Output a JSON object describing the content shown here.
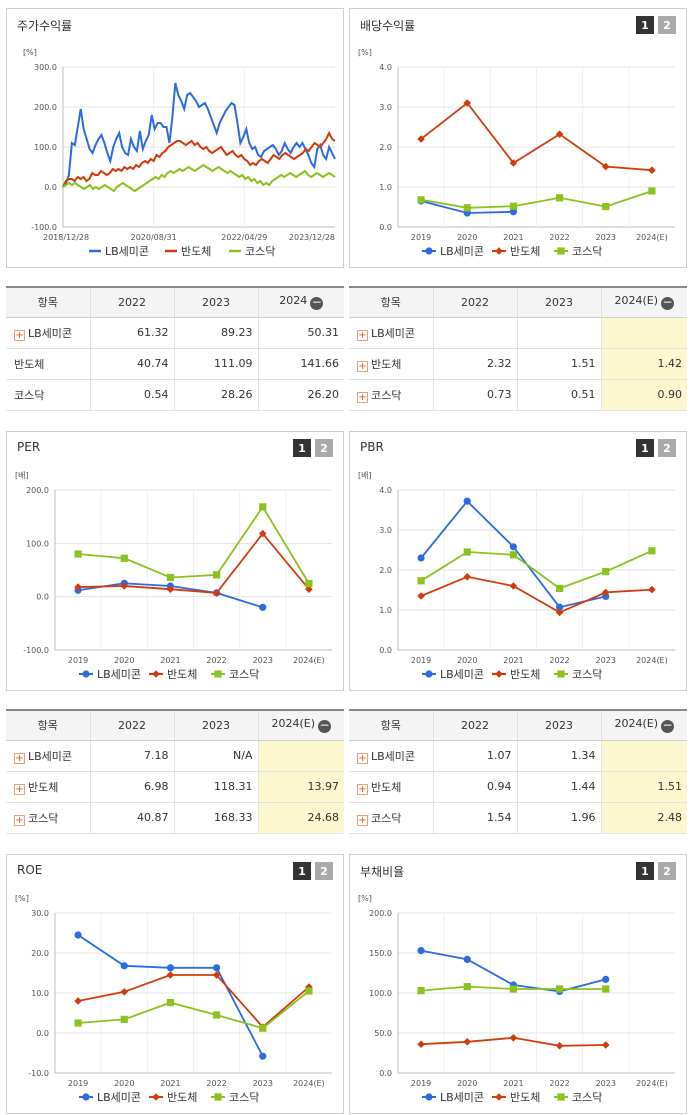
{
  "legend_names": [
    "LB세미콘",
    "반도체",
    "코스닥"
  ],
  "colors": {
    "lb": "#2d6be0",
    "semi": "#d23c0c",
    "kosdaq": "#8cc21e"
  },
  "pager": [
    "1",
    "2"
  ],
  "charts": {
    "stock": {
      "title": "주가수익률",
      "unit": "[%]",
      "chart_data": {
        "type": "line",
        "ylim": [
          -100,
          300
        ],
        "yticks": [
          "300.0",
          "200.0",
          "100.0",
          "0.0",
          "-100.0"
        ],
        "xticks": [
          "2018/12/28",
          "2020/08/31",
          "2022/04/29",
          "2023/12/28"
        ],
        "series": [
          {
            "name": "LB세미콘",
            "values": [
              0,
              10,
              30,
              110,
              105,
              150,
              195,
              145,
              120,
              95,
              85,
              105,
              120,
              130,
              110,
              85,
              65,
              100,
              120,
              135,
              100,
              85,
              80,
              120,
              100,
              90,
              140,
              95,
              115,
              130,
              180,
              145,
              160,
              160,
              150,
              150,
              110,
              175,
              260,
              230,
              215,
              195,
              230,
              235,
              225,
              215,
              200,
              205,
              210,
              195,
              175,
              155,
              135,
              160,
              175,
              190,
              200,
              210,
              205,
              160,
              110,
              125,
              145,
              110,
              95,
              100,
              80,
              75,
              90,
              95,
              100,
              105,
              95,
              80,
              90,
              110,
              95,
              85,
              100,
              110,
              100,
              110,
              95,
              80,
              60,
              50,
              95,
              105,
              80,
              70,
              100,
              85,
              70
            ]
          },
          {
            "name": "반도체",
            "values": [
              0,
              15,
              20,
              20,
              15,
              25,
              20,
              25,
              15,
              20,
              35,
              30,
              30,
              40,
              35,
              30,
              35,
              45,
              40,
              45,
              40,
              50,
              45,
              50,
              45,
              55,
              50,
              60,
              65,
              60,
              70,
              65,
              80,
              75,
              85,
              90,
              100,
              105,
              110,
              115,
              115,
              110,
              105,
              110,
              115,
              105,
              110,
              100,
              95,
              100,
              90,
              85,
              90,
              95,
              100,
              90,
              80,
              85,
              90,
              80,
              75,
              80,
              70,
              65,
              55,
              60,
              55,
              65,
              70,
              65,
              60,
              70,
              80,
              75,
              70,
              80,
              85,
              80,
              75,
              70,
              75,
              80,
              85,
              95,
              90,
              100,
              110,
              105,
              100,
              110,
              120,
              135,
              120,
              115
            ]
          },
          {
            "name": "코스닥",
            "values": [
              0,
              5,
              10,
              5,
              10,
              5,
              0,
              -5,
              0,
              5,
              -5,
              0,
              -5,
              0,
              5,
              0,
              -5,
              -10,
              0,
              5,
              10,
              5,
              0,
              -5,
              -10,
              -5,
              0,
              5,
              10,
              15,
              20,
              25,
              20,
              30,
              25,
              35,
              40,
              35,
              40,
              45,
              40,
              45,
              50,
              45,
              40,
              45,
              50,
              55,
              50,
              45,
              40,
              45,
              50,
              45,
              40,
              35,
              40,
              35,
              30,
              25,
              30,
              20,
              25,
              15,
              20,
              10,
              15,
              5,
              10,
              5,
              15,
              20,
              25,
              30,
              25,
              30,
              35,
              30,
              25,
              30,
              35,
              40,
              30,
              25,
              30,
              35,
              30,
              25,
              30,
              35,
              30,
              25
            ]
          }
        ]
      }
    },
    "dividend": {
      "title": "배당수익률",
      "unit": "[%]",
      "chart_data": {
        "type": "line",
        "ylim": [
          0,
          4
        ],
        "yticks": [
          "4.0",
          "3.0",
          "2.0",
          "1.0",
          "0.0"
        ],
        "categories": [
          "2019",
          "2020",
          "2021",
          "2022",
          "2023",
          "2024(E)"
        ],
        "series": [
          {
            "name": "LB세미콘",
            "values": [
              0.65,
              0.35,
              0.38,
              null,
              null,
              null
            ]
          },
          {
            "name": "반도체",
            "values": [
              2.2,
              3.1,
              1.6,
              2.32,
              1.51,
              1.42
            ]
          },
          {
            "name": "코스닥",
            "values": [
              0.68,
              0.48,
              0.52,
              0.73,
              0.51,
              0.9
            ]
          }
        ]
      }
    },
    "per": {
      "title": "PER",
      "unit": "[배]",
      "chart_data": {
        "type": "line",
        "ylim": [
          -100,
          200
        ],
        "yticks": [
          "200.0",
          "100.0",
          "0.0",
          "-100.0"
        ],
        "categories": [
          "2019",
          "2020",
          "2021",
          "2022",
          "2023",
          "2024(E)"
        ],
        "series": [
          {
            "name": "LB세미콘",
            "values": [
              12,
              25,
              20,
              7.18,
              -20,
              null
            ]
          },
          {
            "name": "반도체",
            "values": [
              18,
              20,
              14,
              6.98,
              118.31,
              13.97
            ]
          },
          {
            "name": "코스닥",
            "values": [
              80,
              72,
              36,
              40.87,
              168.33,
              24.68
            ]
          }
        ]
      }
    },
    "pbr": {
      "title": "PBR",
      "unit": "[배]",
      "chart_data": {
        "type": "line",
        "ylim": [
          0,
          4
        ],
        "yticks": [
          "4.0",
          "3.0",
          "2.0",
          "1.0",
          "0.0"
        ],
        "categories": [
          "2019",
          "2020",
          "2021",
          "2022",
          "2023",
          "2024(E)"
        ],
        "series": [
          {
            "name": "LB세미콘",
            "values": [
              2.3,
              3.72,
              2.58,
              1.07,
              1.34,
              null
            ]
          },
          {
            "name": "반도체",
            "values": [
              1.35,
              1.83,
              1.6,
              0.94,
              1.44,
              1.51
            ]
          },
          {
            "name": "코스닥",
            "values": [
              1.73,
              2.45,
              2.38,
              1.54,
              1.96,
              2.48
            ]
          }
        ]
      }
    },
    "roe": {
      "title": "ROE",
      "unit": "[%]",
      "chart_data": {
        "type": "line",
        "ylim": [
          -10,
          30
        ],
        "yticks": [
          "30.0",
          "20.0",
          "10.0",
          "0.0",
          "-10.0"
        ],
        "categories": [
          "2019",
          "2020",
          "2021",
          "2022",
          "2023",
          "2024(E)"
        ],
        "series": [
          {
            "name": "LB세미콘",
            "values": [
              24.5,
              16.8,
              16.3,
              16.3,
              -5.8,
              null
            ]
          },
          {
            "name": "반도체",
            "values": [
              8,
              10.3,
              14.5,
              14.5,
              1.5,
              11.5
            ]
          },
          {
            "name": "코스닥",
            "values": [
              2.5,
              3.4,
              7.6,
              4.5,
              1.2,
              10.5
            ]
          }
        ]
      }
    },
    "debt": {
      "title": "부채비율",
      "unit": "[%]",
      "chart_data": {
        "type": "line",
        "ylim": [
          0,
          200
        ],
        "yticks": [
          "200.0",
          "150.0",
          "100.0",
          "50.0",
          "0.0"
        ],
        "categories": [
          "2019",
          "2020",
          "2021",
          "2022",
          "2023",
          "2024(E)"
        ],
        "series": [
          {
            "name": "LB세미콘",
            "values": [
              153,
              142,
              110,
              102,
              117,
              null
            ]
          },
          {
            "name": "반도체",
            "values": [
              36,
              39,
              44,
              34,
              35,
              null
            ]
          },
          {
            "name": "코스닥",
            "values": [
              103,
              108,
              105,
              105,
              105,
              null
            ]
          }
        ]
      }
    }
  },
  "tables": {
    "stock": {
      "header": [
        "항목",
        "2022",
        "2023",
        "2024"
      ],
      "rows": [
        {
          "label": "LB세미콘",
          "plus": true,
          "values": [
            "61.32",
            "89.23",
            "50.31"
          ]
        },
        {
          "label": "반도체",
          "plus": false,
          "values": [
            "40.74",
            "111.09",
            "141.66"
          ]
        },
        {
          "label": "코스닥",
          "plus": false,
          "values": [
            "0.54",
            "28.26",
            "26.20"
          ]
        }
      ]
    },
    "dividend": {
      "header": [
        "항목",
        "2022",
        "2023",
        "2024(E)"
      ],
      "rows": [
        {
          "label": "LB세미콘",
          "plus": true,
          "values": [
            "",
            "",
            ""
          ]
        },
        {
          "label": "반도체",
          "plus": true,
          "values": [
            "2.32",
            "1.51",
            "1.42"
          ]
        },
        {
          "label": "코스닥",
          "plus": true,
          "values": [
            "0.73",
            "0.51",
            "0.90"
          ]
        }
      ]
    },
    "per": {
      "header": [
        "항목",
        "2022",
        "2023",
        "2024(E)"
      ],
      "rows": [
        {
          "label": "LB세미콘",
          "plus": true,
          "values": [
            "7.18",
            "N/A",
            ""
          ]
        },
        {
          "label": "반도체",
          "plus": true,
          "values": [
            "6.98",
            "118.31",
            "13.97"
          ]
        },
        {
          "label": "코스닥",
          "plus": true,
          "values": [
            "40.87",
            "168.33",
            "24.68"
          ]
        }
      ]
    },
    "pbr": {
      "header": [
        "항목",
        "2022",
        "2023",
        "2024(E)"
      ],
      "rows": [
        {
          "label": "LB세미콘",
          "plus": true,
          "values": [
            "1.07",
            "1.34",
            ""
          ]
        },
        {
          "label": "반도체",
          "plus": true,
          "values": [
            "0.94",
            "1.44",
            "1.51"
          ]
        },
        {
          "label": "코스닥",
          "plus": true,
          "values": [
            "1.54",
            "1.96",
            "2.48"
          ]
        }
      ]
    }
  }
}
